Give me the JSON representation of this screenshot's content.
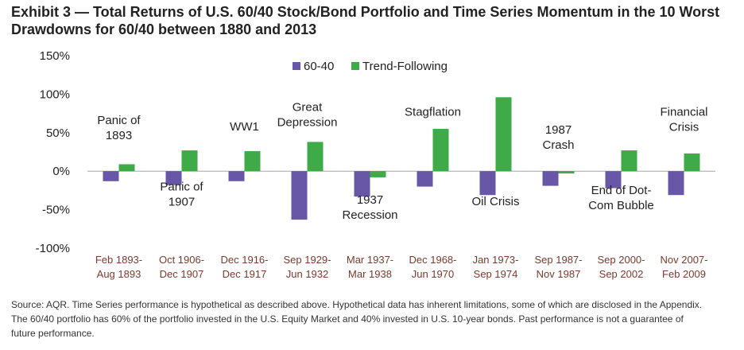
{
  "title": {
    "line1": "Exhibit 3 — Total Returns of U.S. 60/40 Stock/Bond Portfolio and Time Series Momentum in the 10 Worst",
    "line2": "Drawdowns for 60/40 between 1880 and 2013"
  },
  "chart_data": {
    "type": "bar",
    "title": "Total Returns of U.S. 60/40 Stock/Bond Portfolio and Time Series Momentum in the 10 Worst Drawdowns for 60/40 between 1880 and 2013",
    "xlabel": "",
    "ylabel": "",
    "ylim": [
      -100,
      150
    ],
    "yticks": [
      150,
      100,
      50,
      0,
      -50,
      -100
    ],
    "ytick_labels": [
      "150%",
      "100%",
      "50%",
      "0%",
      "-50%",
      "-100%"
    ],
    "grid": false,
    "legend_position": "top-center",
    "categories": [
      [
        "Feb 1893-",
        "Aug 1893"
      ],
      [
        "Oct 1906-",
        "Dec 1907"
      ],
      [
        "Dec 1916-",
        "Dec 1917"
      ],
      [
        "Sep 1929-",
        "Jun 1932"
      ],
      [
        "Mar 1937-",
        "Mar 1938"
      ],
      [
        "Dec 1968-",
        "Jun 1970"
      ],
      [
        "Jan 1973-",
        "Sep 1974"
      ],
      [
        "Sep 1987-",
        "Nov 1987"
      ],
      [
        "Sep 2000-",
        "Sep 2002"
      ],
      [
        "Nov 2007-",
        "Feb 2009"
      ]
    ],
    "series": [
      {
        "name": "60-40",
        "color": "#6757a6",
        "values": [
          -13,
          -18,
          -13,
          -63,
          -33,
          -20,
          -31,
          -19,
          -22,
          -31
        ]
      },
      {
        "name": "Trend-Following",
        "color": "#3eab48",
        "values": [
          9,
          27,
          26,
          38,
          -8,
          55,
          96,
          -3,
          27,
          23
        ]
      }
    ],
    "annotations": [
      {
        "lines": [
          "Panic of",
          "1893"
        ],
        "category_index": 0,
        "anchor_value": 61,
        "side": "center"
      },
      {
        "lines": [
          "Panic of",
          "1907"
        ],
        "category_index": 1,
        "anchor_value": -25,
        "side": "center"
      },
      {
        "lines": [
          "WW1"
        ],
        "category_index": 2,
        "anchor_value": 53,
        "side": "center"
      },
      {
        "lines": [
          "Great",
          "Depression"
        ],
        "category_index": 3,
        "anchor_value": 78,
        "side": "center"
      },
      {
        "lines": [
          "1937",
          "Recession"
        ],
        "category_index": 4,
        "anchor_value": -42,
        "side": "center"
      },
      {
        "lines": [
          "Stagflation"
        ],
        "category_index": 5,
        "anchor_value": 72,
        "side": "center"
      },
      {
        "lines": [
          "Oil Crisis"
        ],
        "category_index": 6,
        "anchor_value": -44,
        "side": "center"
      },
      {
        "lines": [
          "1987",
          "Crash"
        ],
        "category_index": 7,
        "anchor_value": 49,
        "side": "center"
      },
      {
        "lines": [
          "End of Dot-",
          "Com Bubble"
        ],
        "category_index": 8,
        "anchor_value": -30,
        "side": "center"
      },
      {
        "lines": [
          "Financial",
          "Crisis"
        ],
        "category_index": 9,
        "anchor_value": 72,
        "side": "center"
      }
    ],
    "colors": {
      "axis_labels": "#222222",
      "category_labels": "#7a3a2e",
      "zero_line": "#999999"
    }
  },
  "source": {
    "line1": "Source: AQR. Time Series performance is hypothetical as described above. Hypothetical data has inherent limitations, some of which are disclosed in the Appendix.",
    "line2": "The 60/40 portfolio has 60% of the portfolio invested in the  U.S. Equity Market and 40% invested in U.S. 10-year bonds. Past performance is not a guarantee of",
    "line3": "future performance."
  }
}
